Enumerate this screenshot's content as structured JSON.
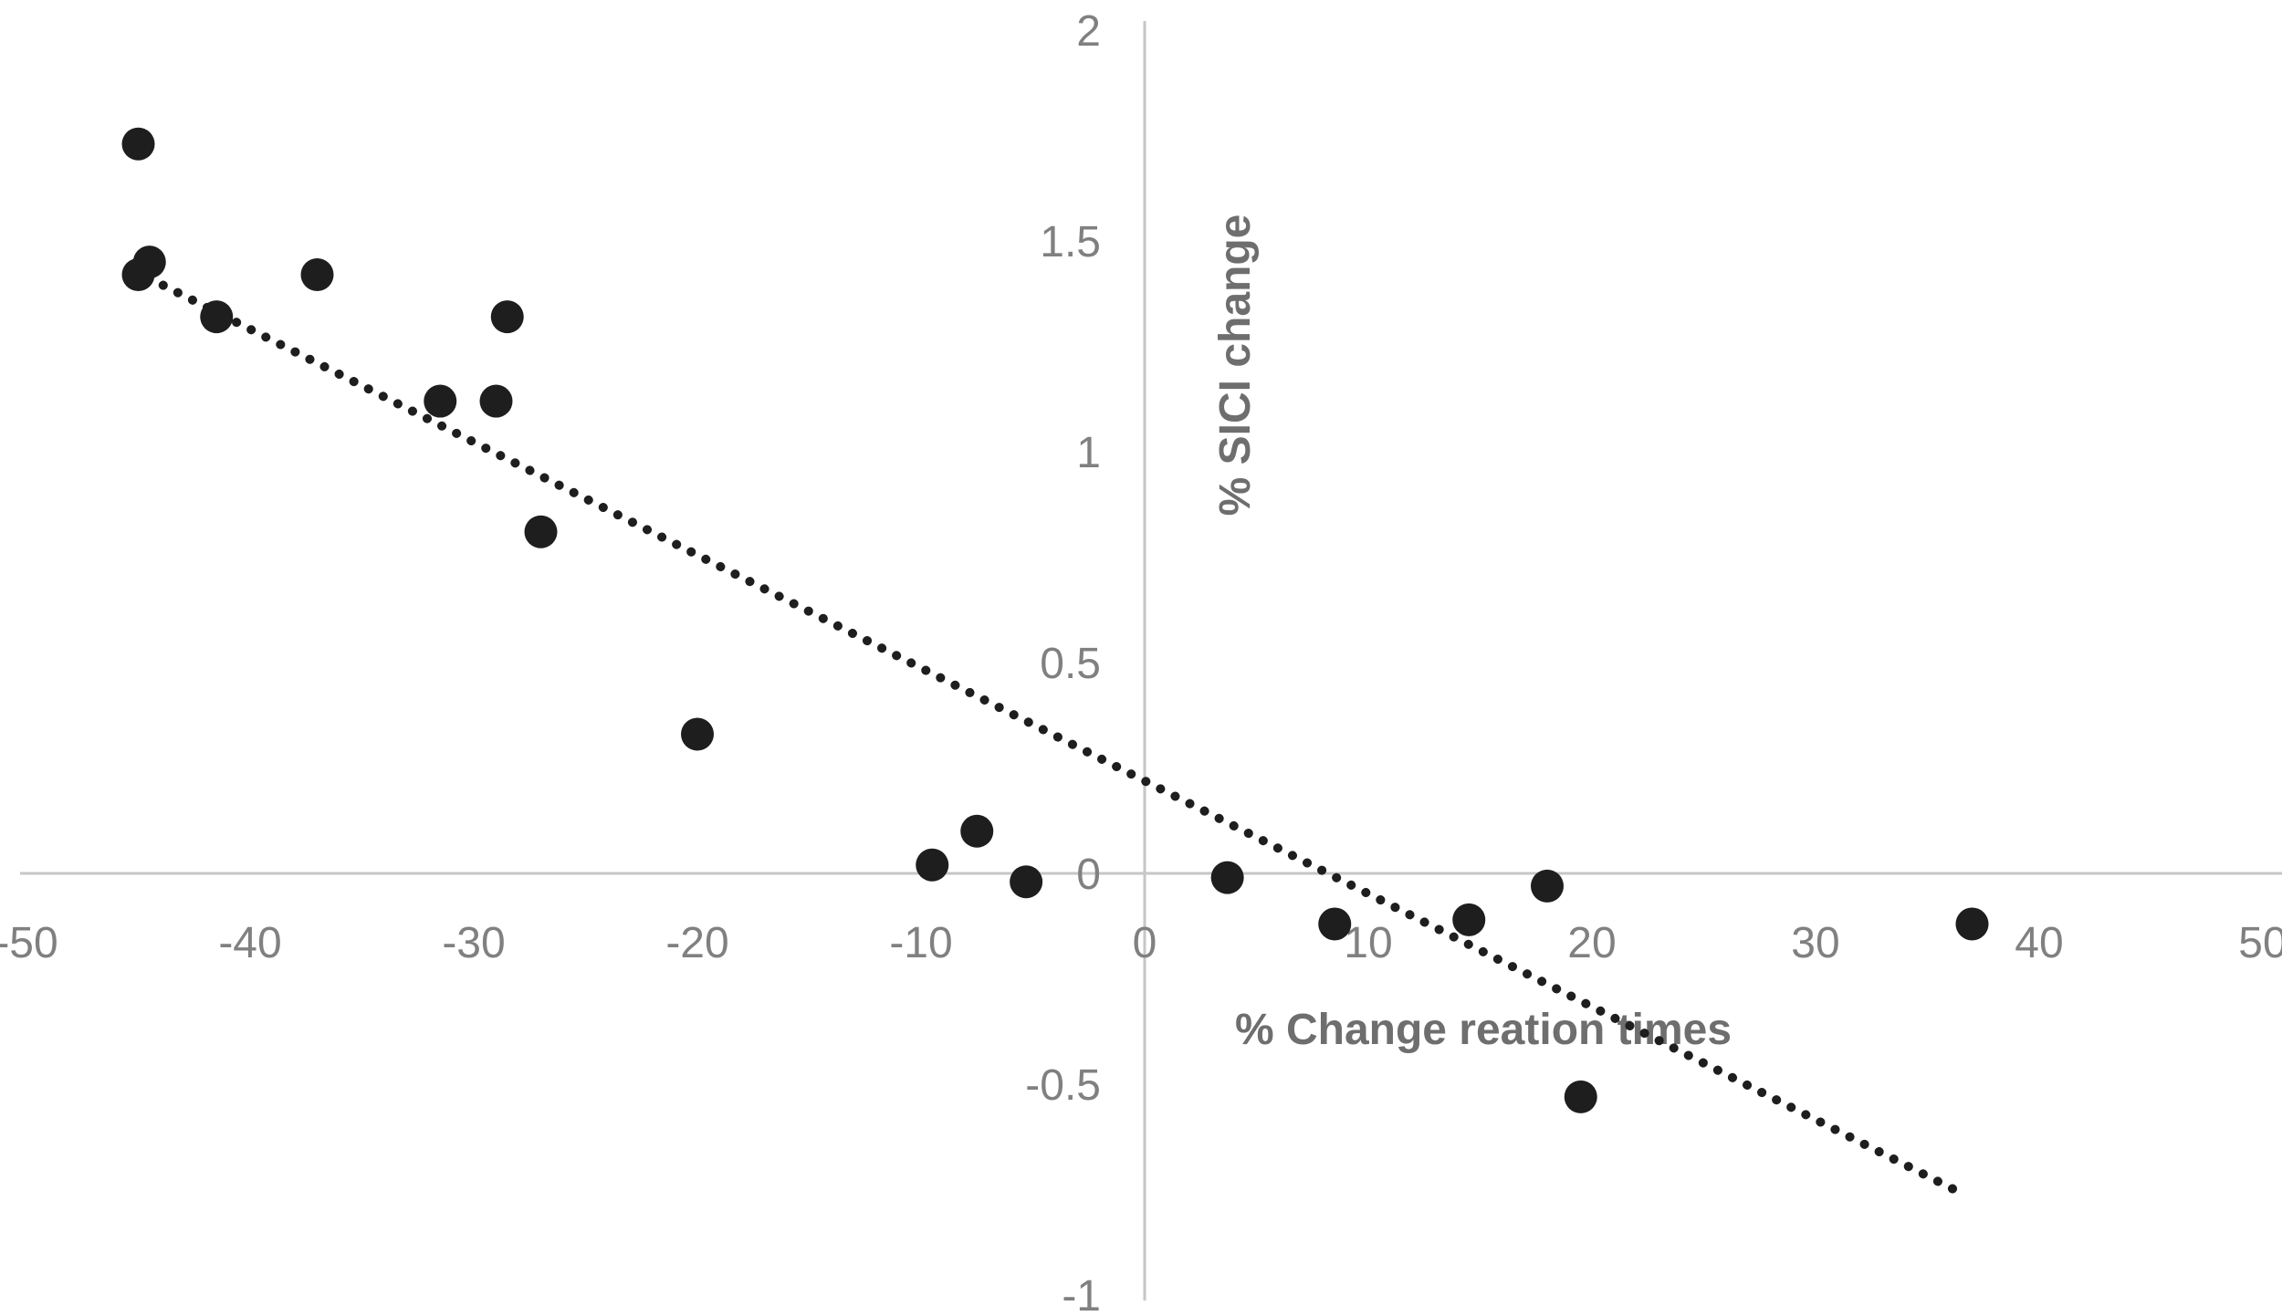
{
  "chart_data": {
    "type": "scatter",
    "title": "",
    "xlabel": "% Change reation times",
    "ylabel": "% SICI change",
    "xlim": [
      -50,
      50
    ],
    "ylim": [
      -1,
      2
    ],
    "x_ticks": [
      -50,
      -40,
      -30,
      -20,
      -10,
      0,
      10,
      20,
      30,
      40,
      50
    ],
    "y_ticks": [
      2,
      1.5,
      1,
      0.5,
      0,
      -0.5,
      -1
    ],
    "grid": "off",
    "legend": "none",
    "series": [
      {
        "name": "observations",
        "marker": "filled-circle",
        "points": [
          [
            -45,
            1.73
          ],
          [
            -44.5,
            1.45
          ],
          [
            -45,
            1.42
          ],
          [
            -41.5,
            1.32
          ],
          [
            -37,
            1.42
          ],
          [
            -31.5,
            1.12
          ],
          [
            -29,
            1.12
          ],
          [
            -28.5,
            1.32
          ],
          [
            -27,
            0.81
          ],
          [
            -20,
            0.33
          ],
          [
            -9.5,
            0.02
          ],
          [
            -7.5,
            0.1
          ],
          [
            -5.3,
            -0.02
          ],
          [
            3.7,
            -0.01
          ],
          [
            8.5,
            -0.12
          ],
          [
            14.5,
            -0.11
          ],
          [
            18,
            -0.03
          ],
          [
            19.5,
            -0.53
          ],
          [
            37,
            -0.12
          ]
        ]
      }
    ],
    "trendline": {
      "style": "dotted",
      "x1": -45.2,
      "y1": 1.43,
      "x2": 36.2,
      "y2": -0.75
    }
  },
  "style": {
    "point_color": "#1e1e1e",
    "trend_color": "#1e1e1e",
    "axis_line_color": "#c6c6c6",
    "tick_label_color": "#808080",
    "axis_title_color": "#6e6e6e",
    "background": "#ffffff"
  }
}
